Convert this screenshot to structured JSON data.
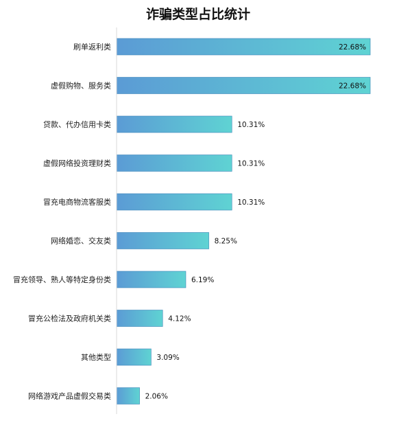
{
  "chart_data": {
    "type": "bar",
    "orientation": "horizontal",
    "title": "诈骗类型占比统计",
    "categories": [
      "刷单返利类",
      "虚假购物、服务类",
      "贷款、代办信用卡类",
      "虚假网络投资理财类",
      "冒充电商物流客服类",
      "网络婚恋、交友类",
      "冒充领导、熟人等特定身份类",
      "冒充公检法及政府机关类",
      "其他类型",
      "网络游戏产品虚假交易类"
    ],
    "values": [
      22.68,
      22.68,
      10.31,
      10.31,
      10.31,
      8.25,
      6.19,
      4.12,
      3.09,
      2.06
    ],
    "value_labels": [
      "22.68%",
      "22.68%",
      "10.31%",
      "10.31%",
      "10.31%",
      "8.25%",
      "6.19%",
      "4.12%",
      "3.09%",
      "2.06%"
    ],
    "xlim": [
      0,
      22.68
    ],
    "grid": false,
    "legend": "none",
    "colors": {
      "bar_start": "#5b9bd5",
      "bar_end": "#5fd3d3",
      "bar_edge": "#3f86b8",
      "axis": "#d9d9d9"
    }
  }
}
